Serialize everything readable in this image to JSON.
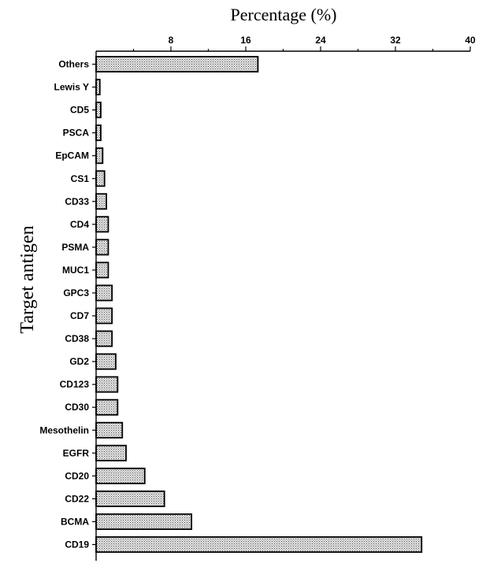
{
  "chart_data": {
    "type": "bar",
    "orientation": "horizontal",
    "xlabel": "Percentage (%)",
    "ylabel": "Target antigen",
    "xlim": [
      0,
      40
    ],
    "xticks": [
      8,
      16,
      24,
      32,
      40
    ],
    "x_axis_position": "top",
    "grid": false,
    "bar_fill": "crosshatch-gray",
    "categories": [
      "Others",
      "Lewis Y",
      "CD5",
      "PSCA",
      "EpCAM",
      "CS1",
      "CD33",
      "CD4",
      "PSMA",
      "MUC1",
      "GPC3",
      "CD7",
      "CD38",
      "GD2",
      "CD123",
      "CD30",
      "Mesothelin",
      "EGFR",
      "CD20",
      "CD22",
      "BCMA",
      "CD19"
    ],
    "values": [
      17.3,
      0.4,
      0.5,
      0.5,
      0.7,
      0.9,
      1.1,
      1.3,
      1.3,
      1.3,
      1.7,
      1.7,
      1.7,
      2.1,
      2.3,
      2.3,
      2.8,
      3.2,
      5.2,
      7.3,
      10.2,
      34.8
    ]
  }
}
